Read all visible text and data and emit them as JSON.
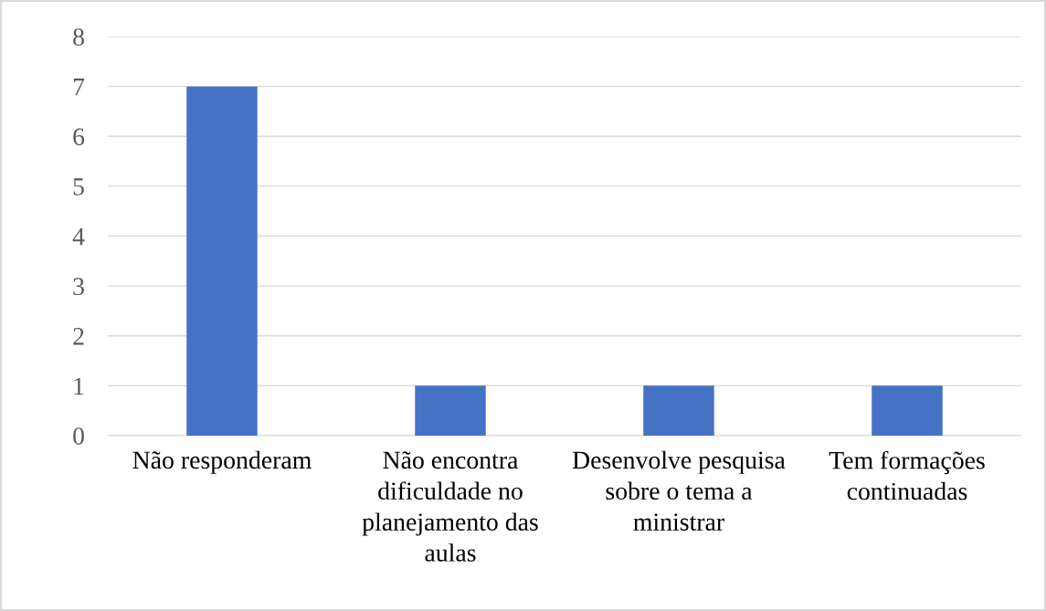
{
  "chart_data": {
    "type": "bar",
    "categories": [
      "Não responderam",
      "Não encontra\ndificuldade no\nplanejamento das\naulas",
      "Desenvolve pesquisa\nsobre o tema a\nministrar",
      "Tem formações\ncontinuadas"
    ],
    "values": [
      7,
      1,
      1,
      1
    ],
    "color": "#4472c4",
    "ylim": [
      0,
      8
    ],
    "yticks": [
      0,
      1,
      2,
      3,
      4,
      5,
      6,
      7,
      8
    ],
    "grid": "y"
  }
}
